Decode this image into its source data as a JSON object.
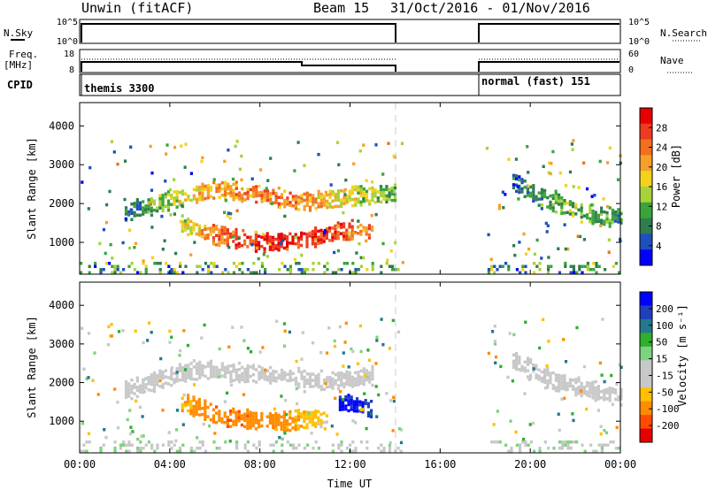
{
  "header": {
    "title_left": "Unwin (fitACF)",
    "title_beam": "Beam 15",
    "title_dates": "31/Oct/2016 - 01/Nov/2016"
  },
  "side_labels": {
    "nsky": "N.Sky",
    "freq": "Freq.",
    "freq_unit": "[MHz]",
    "cpid": "CPID",
    "nsearch": "N.Search",
    "nave": "Nave"
  },
  "cpid_modes": [
    "themis 3300",
    "normal (fast) 151"
  ],
  "noise_panel": {
    "yticks_left": [
      "10^5",
      "10^0"
    ],
    "yticks_right": [
      "10^5",
      "10^0"
    ]
  },
  "freq_panel": {
    "yticks_left": [
      "18",
      "8"
    ],
    "yticks_right": [
      "60",
      "0"
    ]
  },
  "colors": {
    "power_scale": [
      "#0000ff",
      "#1f4fbf",
      "#2e7d4f",
      "#3aa43a",
      "#a6d23a",
      "#f2d21c",
      "#f5a02a",
      "#f36f1e",
      "#ee3a1f",
      "#e60000"
    ],
    "velocity_scale": [
      "#e60000",
      "#ff4a00",
      "#ff8c00",
      "#ffc000",
      "#c8c8c8",
      "#c8c8c8",
      "#7dd37d",
      "#2fae2f",
      "#24788c",
      "#1f3fbf",
      "#0000ff"
    ],
    "ground_scatter": "#c8c8c8"
  },
  "chart_data": [
    {
      "type": "heatmap",
      "name": "power",
      "title": "",
      "xlabel": "",
      "ylabel": "Slant Range [km]",
      "xlim_hours": [
        0,
        24
      ],
      "ylim_km": [
        180,
        4600
      ],
      "xticks": [
        "00:00",
        "04:00",
        "08:00",
        "12:00",
        "16:00",
        "20:00",
        "00:00"
      ],
      "yticks": [
        "1000",
        "2000",
        "3000",
        "4000"
      ],
      "colorbar": {
        "label": "Power [dB]",
        "range": [
          0,
          30
        ],
        "ticks": [
          "4",
          "8",
          "12",
          "16",
          "20",
          "24",
          "28"
        ]
      },
      "data_gaps_hours": [
        [
          14.3,
          18.0
        ]
      ],
      "features": [
        {
          "desc": "upper band",
          "t": [
            2.0,
            4.0,
            6.0,
            8.0,
            10.0,
            12.0,
            14.0
          ],
          "range_km": [
            1750,
            2050,
            2350,
            2200,
            2000,
            2150,
            2250
          ],
          "power_db": [
            6,
            14,
            20,
            22,
            20,
            16,
            10
          ]
        },
        {
          "desc": "lower band",
          "t": [
            4.5,
            6.0,
            8.0,
            10.0,
            12.0,
            13.0
          ],
          "range_km": [
            1450,
            1150,
            950,
            1050,
            1300,
            1200
          ],
          "power_db": [
            14,
            22,
            28,
            26,
            24,
            20
          ]
        },
        {
          "desc": "morning band",
          "t": [
            19.2,
            20.0,
            21.0,
            22.0,
            23.0,
            24.0
          ],
          "range_km": [
            2550,
            2250,
            2000,
            1800,
            1650,
            1600
          ],
          "power_db": [
            6,
            8,
            10,
            12,
            10,
            8
          ]
        }
      ]
    },
    {
      "type": "heatmap",
      "name": "velocity",
      "title": "",
      "xlabel": "Time UT",
      "ylabel": "Slant Range [km]",
      "xlim_hours": [
        0,
        24
      ],
      "ylim_km": [
        180,
        4600
      ],
      "xticks": [
        "00:00",
        "04:00",
        "08:00",
        "12:00",
        "16:00",
        "20:00",
        "00:00"
      ],
      "yticks": [
        "1000",
        "2000",
        "3000",
        "4000"
      ],
      "colorbar": {
        "label": "Velocity [m s-1]",
        "label_display": "Velocity [m s⁻¹]",
        "range": [
          -250,
          250
        ],
        "ticks": [
          "200",
          "100",
          "50",
          "15",
          "-15",
          "-50",
          "-100",
          "-200"
        ]
      },
      "data_gaps_hours": [
        [
          14.3,
          18.0
        ]
      ],
      "features": [
        {
          "desc": "upper band",
          "t": [
            2.0,
            5.0,
            8.0,
            11.0,
            13.0
          ],
          "range_km": [
            1750,
            2300,
            2200,
            2000,
            2150
          ],
          "velocity": [
            0,
            0,
            0,
            0,
            0
          ]
        },
        {
          "desc": "lower band",
          "t": [
            4.5,
            6.5,
            9.0,
            11.0
          ],
          "range_km": [
            1450,
            1050,
            950,
            1100
          ],
          "velocity": [
            -120,
            -150,
            -130,
            -60
          ]
        },
        {
          "desc": "positive cell",
          "t": [
            11.5,
            12.5,
            13.0
          ],
          "range_km": [
            1450,
            1400,
            1250
          ],
          "velocity": [
            220,
            200,
            150
          ]
        },
        {
          "desc": "morning band",
          "t": [
            19.2,
            21.0,
            24.0
          ],
          "range_km": [
            2550,
            2000,
            1600
          ],
          "velocity": [
            0,
            0,
            0
          ]
        }
      ]
    }
  ]
}
